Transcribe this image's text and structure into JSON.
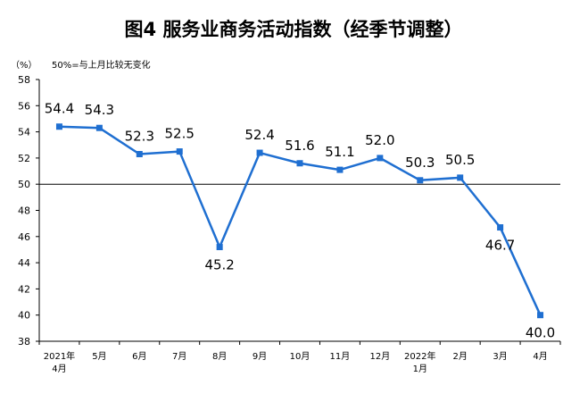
{
  "chart_data": {
    "type": "line",
    "title": "图4  服务业商务活动指数（经季节调整）",
    "unit_label": "（%）",
    "note": "50%=与上月比较无变化",
    "reference_value": 50,
    "ylim": [
      38,
      58
    ],
    "yticks": [
      "38",
      "40",
      "42",
      "44",
      "46",
      "48",
      "50",
      "52",
      "54",
      "56",
      "58"
    ],
    "grid": false,
    "legend": "none",
    "categories": [
      [
        "2021年",
        "4月"
      ],
      [
        "5月"
      ],
      [
        "6月"
      ],
      [
        "7月"
      ],
      [
        "8月"
      ],
      [
        "9月"
      ],
      [
        "10月"
      ],
      [
        "11月"
      ],
      [
        "12月"
      ],
      [
        "2022年",
        "1月"
      ],
      [
        "2月"
      ],
      [
        "3月"
      ],
      [
        "4月"
      ]
    ],
    "values": [
      54.4,
      54.3,
      52.3,
      52.5,
      45.2,
      52.4,
      51.6,
      51.1,
      52.0,
      50.3,
      50.5,
      46.7,
      40.0
    ],
    "data_labels": [
      "54.4",
      "54.3",
      "52.3",
      "52.5",
      "45.2",
      "52.4",
      "51.6",
      "51.1",
      "52.0",
      "50.3",
      "50.5",
      "46.7",
      "40.0"
    ],
    "label_below": [
      false,
      false,
      false,
      false,
      true,
      false,
      false,
      false,
      false,
      false,
      false,
      true,
      true
    ],
    "line_color": "#1f6fd1",
    "axis_color": "#000000"
  }
}
